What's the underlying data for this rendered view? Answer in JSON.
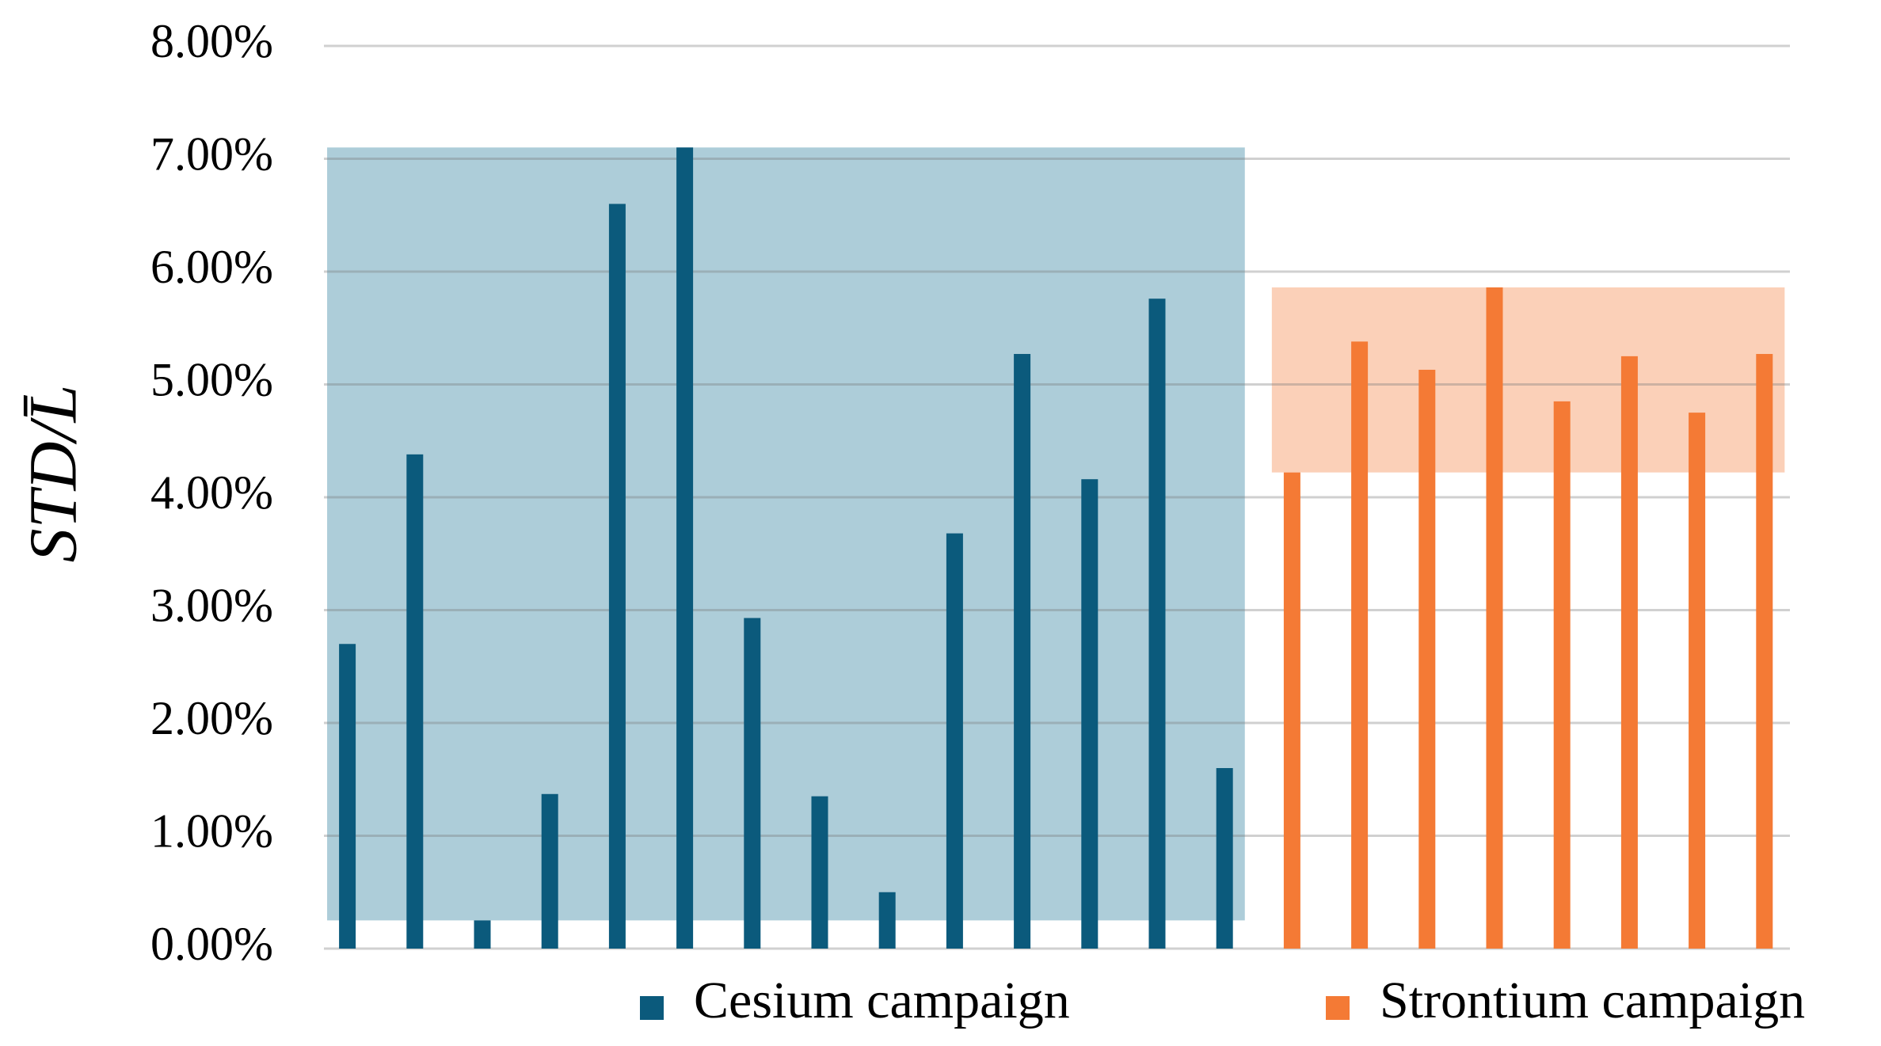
{
  "chart_data": {
    "type": "bar",
    "y_label": "STD/L̄",
    "categories": [
      null,
      null,
      null,
      null,
      null,
      null,
      null,
      null,
      null,
      null,
      null,
      null,
      null,
      null,
      null,
      null,
      null,
      null,
      null,
      null,
      null,
      null
    ],
    "series": [
      {
        "name": "Cesium campaign",
        "color": "#0b5a7c",
        "band_color": "#adcdd9",
        "values": [
          2.7,
          4.38,
          0.25,
          1.37,
          6.6,
          7.1,
          2.93,
          1.35,
          0.5,
          3.68,
          5.27,
          4.16,
          5.76,
          1.6,
          null,
          null,
          null,
          null,
          null,
          null,
          null,
          null
        ]
      },
      {
        "name": "Strontium campaign",
        "color": "#f47a35",
        "band_color": "#fbd0b8",
        "values": [
          null,
          null,
          null,
          null,
          null,
          null,
          null,
          null,
          null,
          null,
          null,
          null,
          null,
          null,
          4.22,
          5.38,
          5.13,
          5.86,
          4.85,
          5.25,
          4.75,
          5.27
        ]
      }
    ],
    "ylim": [
      0,
      8
    ],
    "yticks": [
      {
        "value": 0,
        "label": "0.00%"
      },
      {
        "value": 1,
        "label": "1.00%"
      },
      {
        "value": 2,
        "label": "2.00%"
      },
      {
        "value": 3,
        "label": "3.00%"
      },
      {
        "value": 4,
        "label": "4.00%"
      },
      {
        "value": 5,
        "label": "5.00%"
      },
      {
        "value": 6,
        "label": "6.00%"
      },
      {
        "value": 7,
        "label": "7.00%"
      },
      {
        "value": 8,
        "label": "8.00%"
      }
    ],
    "grid": true
  }
}
